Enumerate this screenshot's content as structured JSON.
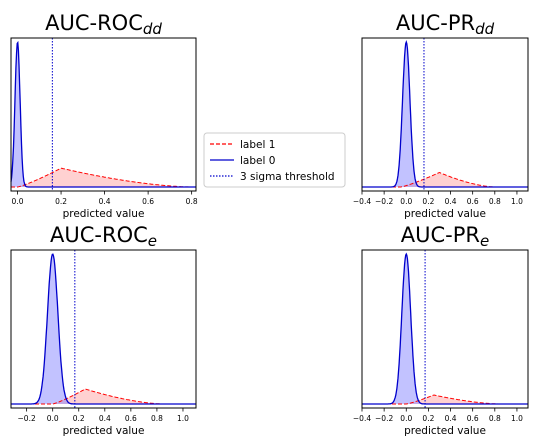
{
  "chart_data": [
    {
      "type": "area",
      "title_main": "AUC-ROC",
      "title_sub": "dd",
      "xlabel": "predicted value",
      "xlim": [
        -0.03,
        0.82
      ],
      "xticks": [
        "0.0",
        "0.2",
        "0.4",
        "0.6",
        "0.8"
      ],
      "tick_values": [
        0.0,
        0.2,
        0.4,
        0.6,
        0.8
      ],
      "threshold": 0.16,
      "series": [
        {
          "name": "label 1",
          "color": "#ff0000",
          "style": "dashed",
          "peak_x": 0.2,
          "peak_density_rel": 0.13,
          "range": [
            0.0,
            0.8
          ]
        },
        {
          "name": "label 0",
          "color": "#0000cc",
          "style": "solid",
          "peak_x": 0.0,
          "peak_density_rel": 1.0,
          "range": [
            -0.02,
            0.05
          ]
        }
      ]
    },
    {
      "type": "area",
      "title_main": "AUC-PR",
      "title_sub": "dd",
      "xlabel": "predicted value",
      "xlim": [
        -0.4,
        1.1
      ],
      "xticks": [
        "−0.4",
        "−0.2",
        "0.0",
        "0.2",
        "0.4",
        "0.6",
        "0.8",
        "1.0"
      ],
      "tick_values": [
        -0.4,
        -0.2,
        0.0,
        0.2,
        0.4,
        0.6,
        0.8,
        1.0
      ],
      "threshold": 0.16,
      "series": [
        {
          "name": "label 1",
          "color": "#ff0000",
          "style": "dashed",
          "peak_x": 0.3,
          "peak_density_rel": 0.1,
          "range": [
            -0.05,
            0.8
          ]
        },
        {
          "name": "label 0",
          "color": "#0000cc",
          "style": "solid",
          "peak_x": 0.0,
          "peak_density_rel": 1.0,
          "range": [
            -0.1,
            0.1
          ]
        }
      ]
    },
    {
      "type": "area",
      "title_main": "AUC-ROC",
      "title_sub": "e",
      "xlabel": "predicted value",
      "xlim": [
        -0.32,
        1.1
      ],
      "xticks": [
        "−0.2",
        "0.0",
        "0.2",
        "0.4",
        "0.6",
        "0.8",
        "1.0"
      ],
      "tick_values": [
        -0.2,
        0.0,
        0.2,
        0.4,
        0.6,
        0.8,
        1.0
      ],
      "threshold": 0.17,
      "series": [
        {
          "name": "label 1",
          "color": "#ff0000",
          "style": "dashed",
          "peak_x": 0.25,
          "peak_density_rel": 0.1,
          "range": [
            0.0,
            0.85
          ]
        },
        {
          "name": "label 0",
          "color": "#0000cc",
          "style": "solid",
          "peak_x": 0.0,
          "peak_density_rel": 1.0,
          "range": [
            -0.12,
            0.12
          ]
        }
      ]
    },
    {
      "type": "area",
      "title_main": "AUC-PR",
      "title_sub": "e",
      "xlabel": "predicted value",
      "xlim": [
        -0.4,
        1.1
      ],
      "xticks": [
        "−0.4",
        "−0.2",
        "0.0",
        "0.2",
        "0.4",
        "0.6",
        "0.8",
        "1.0"
      ],
      "tick_values": [
        -0.4,
        -0.2,
        0.0,
        0.2,
        0.4,
        0.6,
        0.8,
        1.0
      ],
      "threshold": 0.17,
      "series": [
        {
          "name": "label 1",
          "color": "#ff0000",
          "style": "dashed",
          "peak_x": 0.25,
          "peak_density_rel": 0.06,
          "range": [
            0.0,
            0.85
          ]
        },
        {
          "name": "label 0",
          "color": "#0000cc",
          "style": "solid",
          "peak_x": 0.0,
          "peak_density_rel": 1.0,
          "range": [
            -0.12,
            0.12
          ]
        }
      ]
    }
  ],
  "legend": {
    "placement": "center",
    "items": [
      {
        "label": "label 1",
        "color": "#ff0000",
        "style": "dashed"
      },
      {
        "label": "label 0",
        "color": "#0000cc",
        "style": "solid"
      },
      {
        "label": "3 sigma threshold",
        "color": "#0000cc",
        "style": "dotted"
      }
    ]
  }
}
